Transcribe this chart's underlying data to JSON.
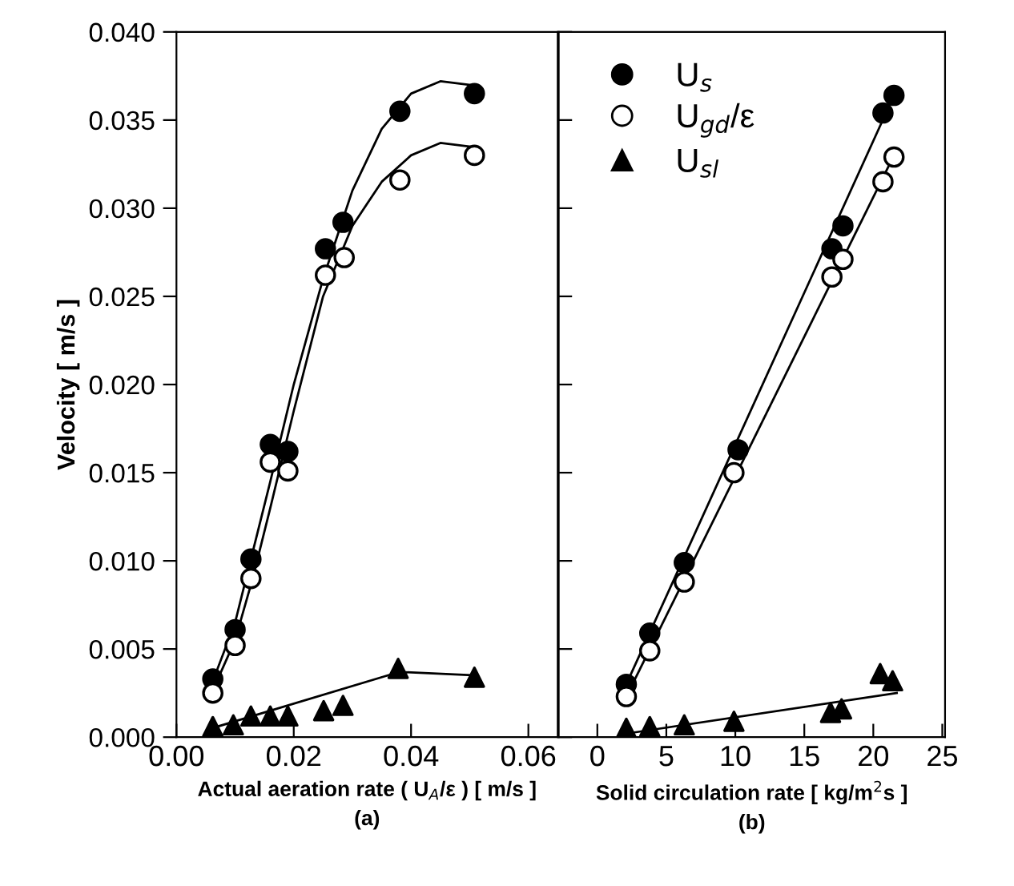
{
  "chart_data": [
    {
      "type": "scatter",
      "xlabel": "Actual aeration rate ( U$_{A}$/ε ) [ m/s ]\n(a)",
      "ylabel": "Velocity [ m/s ]",
      "xlim": [
        0,
        0.065
      ],
      "xticks": [
        {
          "value": 0,
          "label": "0.00"
        },
        {
          "value": 0.02,
          "label": "0.02"
        },
        {
          "value": 0.04,
          "label": "0.04"
        },
        {
          "value": 0.06,
          "label": "0.06"
        }
      ],
      "ylim": [
        0,
        0.04
      ],
      "yticks": [
        {
          "value": 0,
          "label": "0.000"
        },
        {
          "value": 0.005,
          "label": "0.005"
        },
        {
          "value": 0.01,
          "label": "0.010"
        },
        {
          "value": 0.015,
          "label": "0.015"
        },
        {
          "value": 0.02,
          "label": "0.020"
        },
        {
          "value": 0.025,
          "label": "0.025"
        },
        {
          "value": 0.03,
          "label": "0.030"
        },
        {
          "value": 0.035,
          "label": "0.035"
        },
        {
          "value": 0.04,
          "label": "0.040"
        }
      ],
      "grid": false,
      "series": [
        {
          "type": "line",
          "color": "#000000",
          "marker": "none",
          "x": [
            0.006,
            0.01,
            0.013,
            0.016,
            0.02,
            0.025,
            0.03,
            0.035,
            0.04,
            0.045,
            0.05
          ],
          "values": [
            0.003,
            0.0065,
            0.0105,
            0.0145,
            0.02,
            0.026,
            0.031,
            0.0345,
            0.0365,
            0.0372,
            0.037
          ]
        },
        {
          "type": "line",
          "color": "#000000",
          "marker": "none",
          "x": [
            0.006,
            0.01,
            0.013,
            0.016,
            0.02,
            0.025,
            0.03,
            0.035,
            0.04,
            0.045,
            0.05
          ],
          "values": [
            0.0025,
            0.0055,
            0.009,
            0.013,
            0.0185,
            0.025,
            0.029,
            0.0315,
            0.033,
            0.0337,
            0.0335
          ]
        },
        {
          "type": "line",
          "color": "#000000",
          "marker": "none",
          "x": [
            0.006,
            0.038,
            0.051
          ],
          "values": [
            0.0005,
            0.0037,
            0.0035
          ]
        },
        {
          "color": "#000000",
          "marker": "circle",
          "x": [
            0.0062,
            0.01,
            0.0127,
            0.016,
            0.019,
            0.0254,
            0.0284,
            0.0381,
            0.0508
          ],
          "values": [
            0.0033,
            0.0061,
            0.0101,
            0.0166,
            0.0162,
            0.0277,
            0.0292,
            0.0355,
            0.0365
          ]
        },
        {
          "color": "#ffffff",
          "marker": "circle",
          "x": [
            0.0062,
            0.01,
            0.0127,
            0.016,
            0.019,
            0.0254,
            0.0286,
            0.0381,
            0.0508
          ],
          "values": [
            0.0025,
            0.0052,
            0.009,
            0.0156,
            0.0151,
            0.0262,
            0.0272,
            0.0316,
            0.033
          ]
        },
        {
          "color": "#000000",
          "marker": "triangle",
          "x": [
            0.0062,
            0.0097,
            0.0127,
            0.016,
            0.019,
            0.0251,
            0.0284,
            0.0378,
            0.0508
          ],
          "values": [
            0.0006,
            0.0007,
            0.0012,
            0.0012,
            0.0012,
            0.0015,
            0.0018,
            0.0039,
            0.0034
          ]
        }
      ]
    },
    {
      "type": "scatter",
      "xlabel": "Solid circulation rate [ kg/m$^{2}$s ]\n(b)",
      "xlim": [
        -2.8,
        25.2
      ],
      "xticks": [
        0,
        5,
        10,
        15,
        20,
        25
      ],
      "ylim": [
        0,
        0.04
      ],
      "yticks": [
        {
          "value": 0,
          "label": null
        },
        {
          "value": 0.005,
          "label": null
        },
        {
          "value": 0.01,
          "label": null
        },
        {
          "value": 0.015,
          "label": null
        },
        {
          "value": 0.02,
          "label": null
        },
        {
          "value": 0.025,
          "label": null
        },
        {
          "value": 0.03,
          "label": null
        },
        {
          "value": 0.035,
          "label": null
        },
        {
          "value": 0.04,
          "label": null
        }
      ],
      "tick_labels": "x",
      "grid": false,
      "legend": "top left",
      "series": [
        {
          "type": "line",
          "color": "#000000",
          "marker": "none",
          "x": [
            2.1,
            21.5
          ],
          "values": [
            0.003,
            0.0364
          ]
        },
        {
          "type": "line",
          "color": "#000000",
          "marker": "none",
          "x": [
            2.1,
            21.5
          ],
          "values": [
            0.0023,
            0.033
          ]
        },
        {
          "type": "line",
          "color": "#000000",
          "marker": "none",
          "x": [
            2.1,
            21.7
          ],
          "values": [
            0.0002,
            0.0025
          ]
        },
        {
          "name": "U$_{s}$",
          "color": "#000000",
          "marker": "circle",
          "x": [
            2.1,
            3.8,
            6.3,
            10.2,
            17.0,
            17.8,
            20.7,
            21.5
          ],
          "values": [
            0.003,
            0.0059,
            0.0099,
            0.0163,
            0.0277,
            0.029,
            0.0354,
            0.0364
          ]
        },
        {
          "name": "U$_{gd}$/ε",
          "color": "#ffffff",
          "marker": "circle",
          "x": [
            2.1,
            3.8,
            6.3,
            9.9,
            17.0,
            17.8,
            20.7,
            21.5
          ],
          "values": [
            0.0023,
            0.0049,
            0.0088,
            0.015,
            0.0261,
            0.0271,
            0.0315,
            0.0329
          ]
        },
        {
          "name": "U$_{sl}$",
          "color": "#000000",
          "marker": "triangle",
          "x": [
            2.1,
            3.8,
            6.3,
            9.9,
            16.9,
            17.7,
            20.5,
            21.4
          ],
          "values": [
            0.0005,
            0.0006,
            0.0007,
            0.0009,
            0.0014,
            0.0016,
            0.0036,
            0.0032
          ]
        }
      ]
    }
  ]
}
